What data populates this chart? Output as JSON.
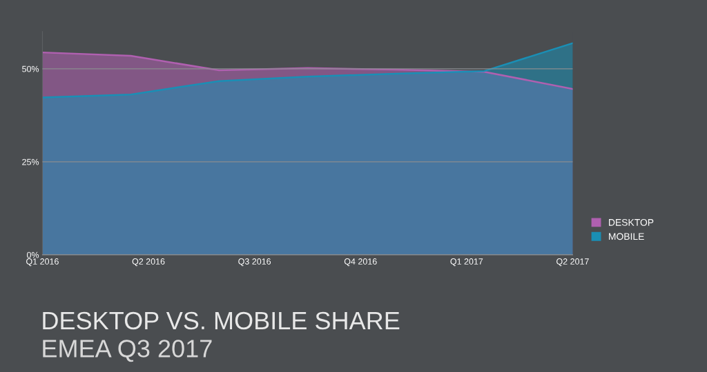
{
  "chart_data": {
    "type": "area",
    "title": "DESKTOP VS. MOBILE SHARE",
    "subtitle": "EMEA Q3 2017",
    "categories": [
      "Q1 2016",
      null,
      null,
      null,
      null,
      null,
      "Q2 2016",
      null,
      null,
      null,
      null,
      null,
      "Q3 2016",
      null,
      null,
      null,
      null,
      null,
      "Q4 2016",
      null,
      null,
      null,
      null,
      null,
      "Q1 2017",
      null,
      null,
      null,
      null,
      null,
      "Q2 2017"
    ],
    "ylim": [
      0,
      60
    ],
    "yticks": [
      {
        "value": 0,
        "label": "0%"
      },
      {
        "value": 25,
        "label": "25%"
      },
      {
        "value": 50,
        "label": "50%"
      }
    ],
    "grid": "y",
    "legend": "right",
    "series": [
      {
        "name": "DESKTOP",
        "color": "#b060b0",
        "values": [
          54.4,
          null,
          null,
          null,
          null,
          53.5,
          null,
          null,
          null,
          null,
          49.6,
          null,
          null,
          null,
          null,
          50.2,
          null,
          null,
          null,
          null,
          49.8,
          null,
          null,
          null,
          null,
          49.2,
          null,
          null,
          null,
          null,
          44.6
        ]
      },
      {
        "name": "MOBILE",
        "color": "#1a8fb5",
        "values": [
          42.3,
          null,
          null,
          null,
          null,
          43.1,
          null,
          null,
          null,
          null,
          46.7,
          null,
          null,
          null,
          null,
          47.9,
          null,
          null,
          null,
          null,
          48.7,
          null,
          null,
          null,
          null,
          49.4,
          null,
          null,
          null,
          null,
          56.9
        ]
      }
    ]
  }
}
